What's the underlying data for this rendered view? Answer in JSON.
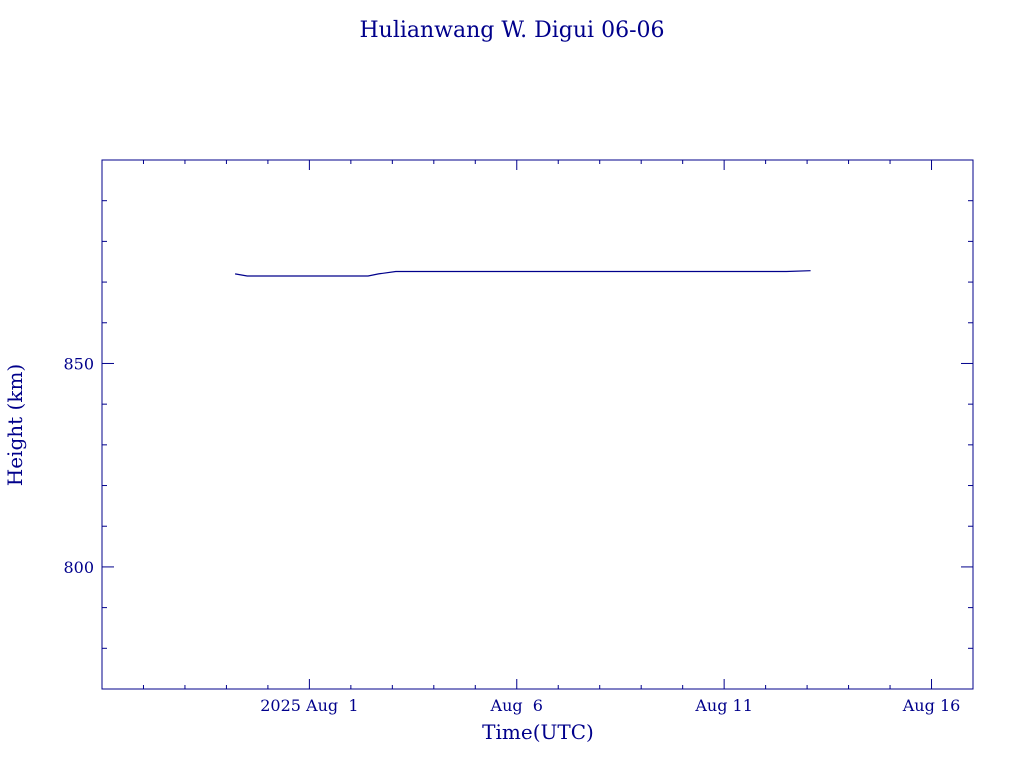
{
  "chart_data": {
    "type": "line",
    "title": "Hulianwang W. Digui 06-06",
    "xlabel": "Time(UTC)",
    "ylabel": "Height (km)",
    "x_ticks": [
      {
        "date": "2025-08-01",
        "label": "2025 Aug  1"
      },
      {
        "date": "2025-08-06",
        "label": "Aug  6"
      },
      {
        "date": "2025-08-11",
        "label": "Aug 11"
      },
      {
        "date": "2025-08-16",
        "label": "Aug 16"
      }
    ],
    "y_ticks": [
      {
        "value": 800,
        "label": "800"
      },
      {
        "value": 850,
        "label": "850"
      }
    ],
    "xlim": [
      "2025-07-27T00:00",
      "2025-08-17T00:00"
    ],
    "ylim": [
      770,
      900
    ],
    "grid": false,
    "color": "#00008b",
    "series": [
      {
        "x": [
          "2025-07-30T05:00",
          "2025-07-30T12:00",
          "2025-08-02T10:00",
          "2025-08-02T16:00",
          "2025-08-03T02:00",
          "2025-08-12T12:00",
          "2025-08-13T02:00"
        ],
        "y": [
          872.0,
          871.5,
          871.5,
          872.0,
          872.6,
          872.6,
          872.8
        ]
      }
    ]
  }
}
